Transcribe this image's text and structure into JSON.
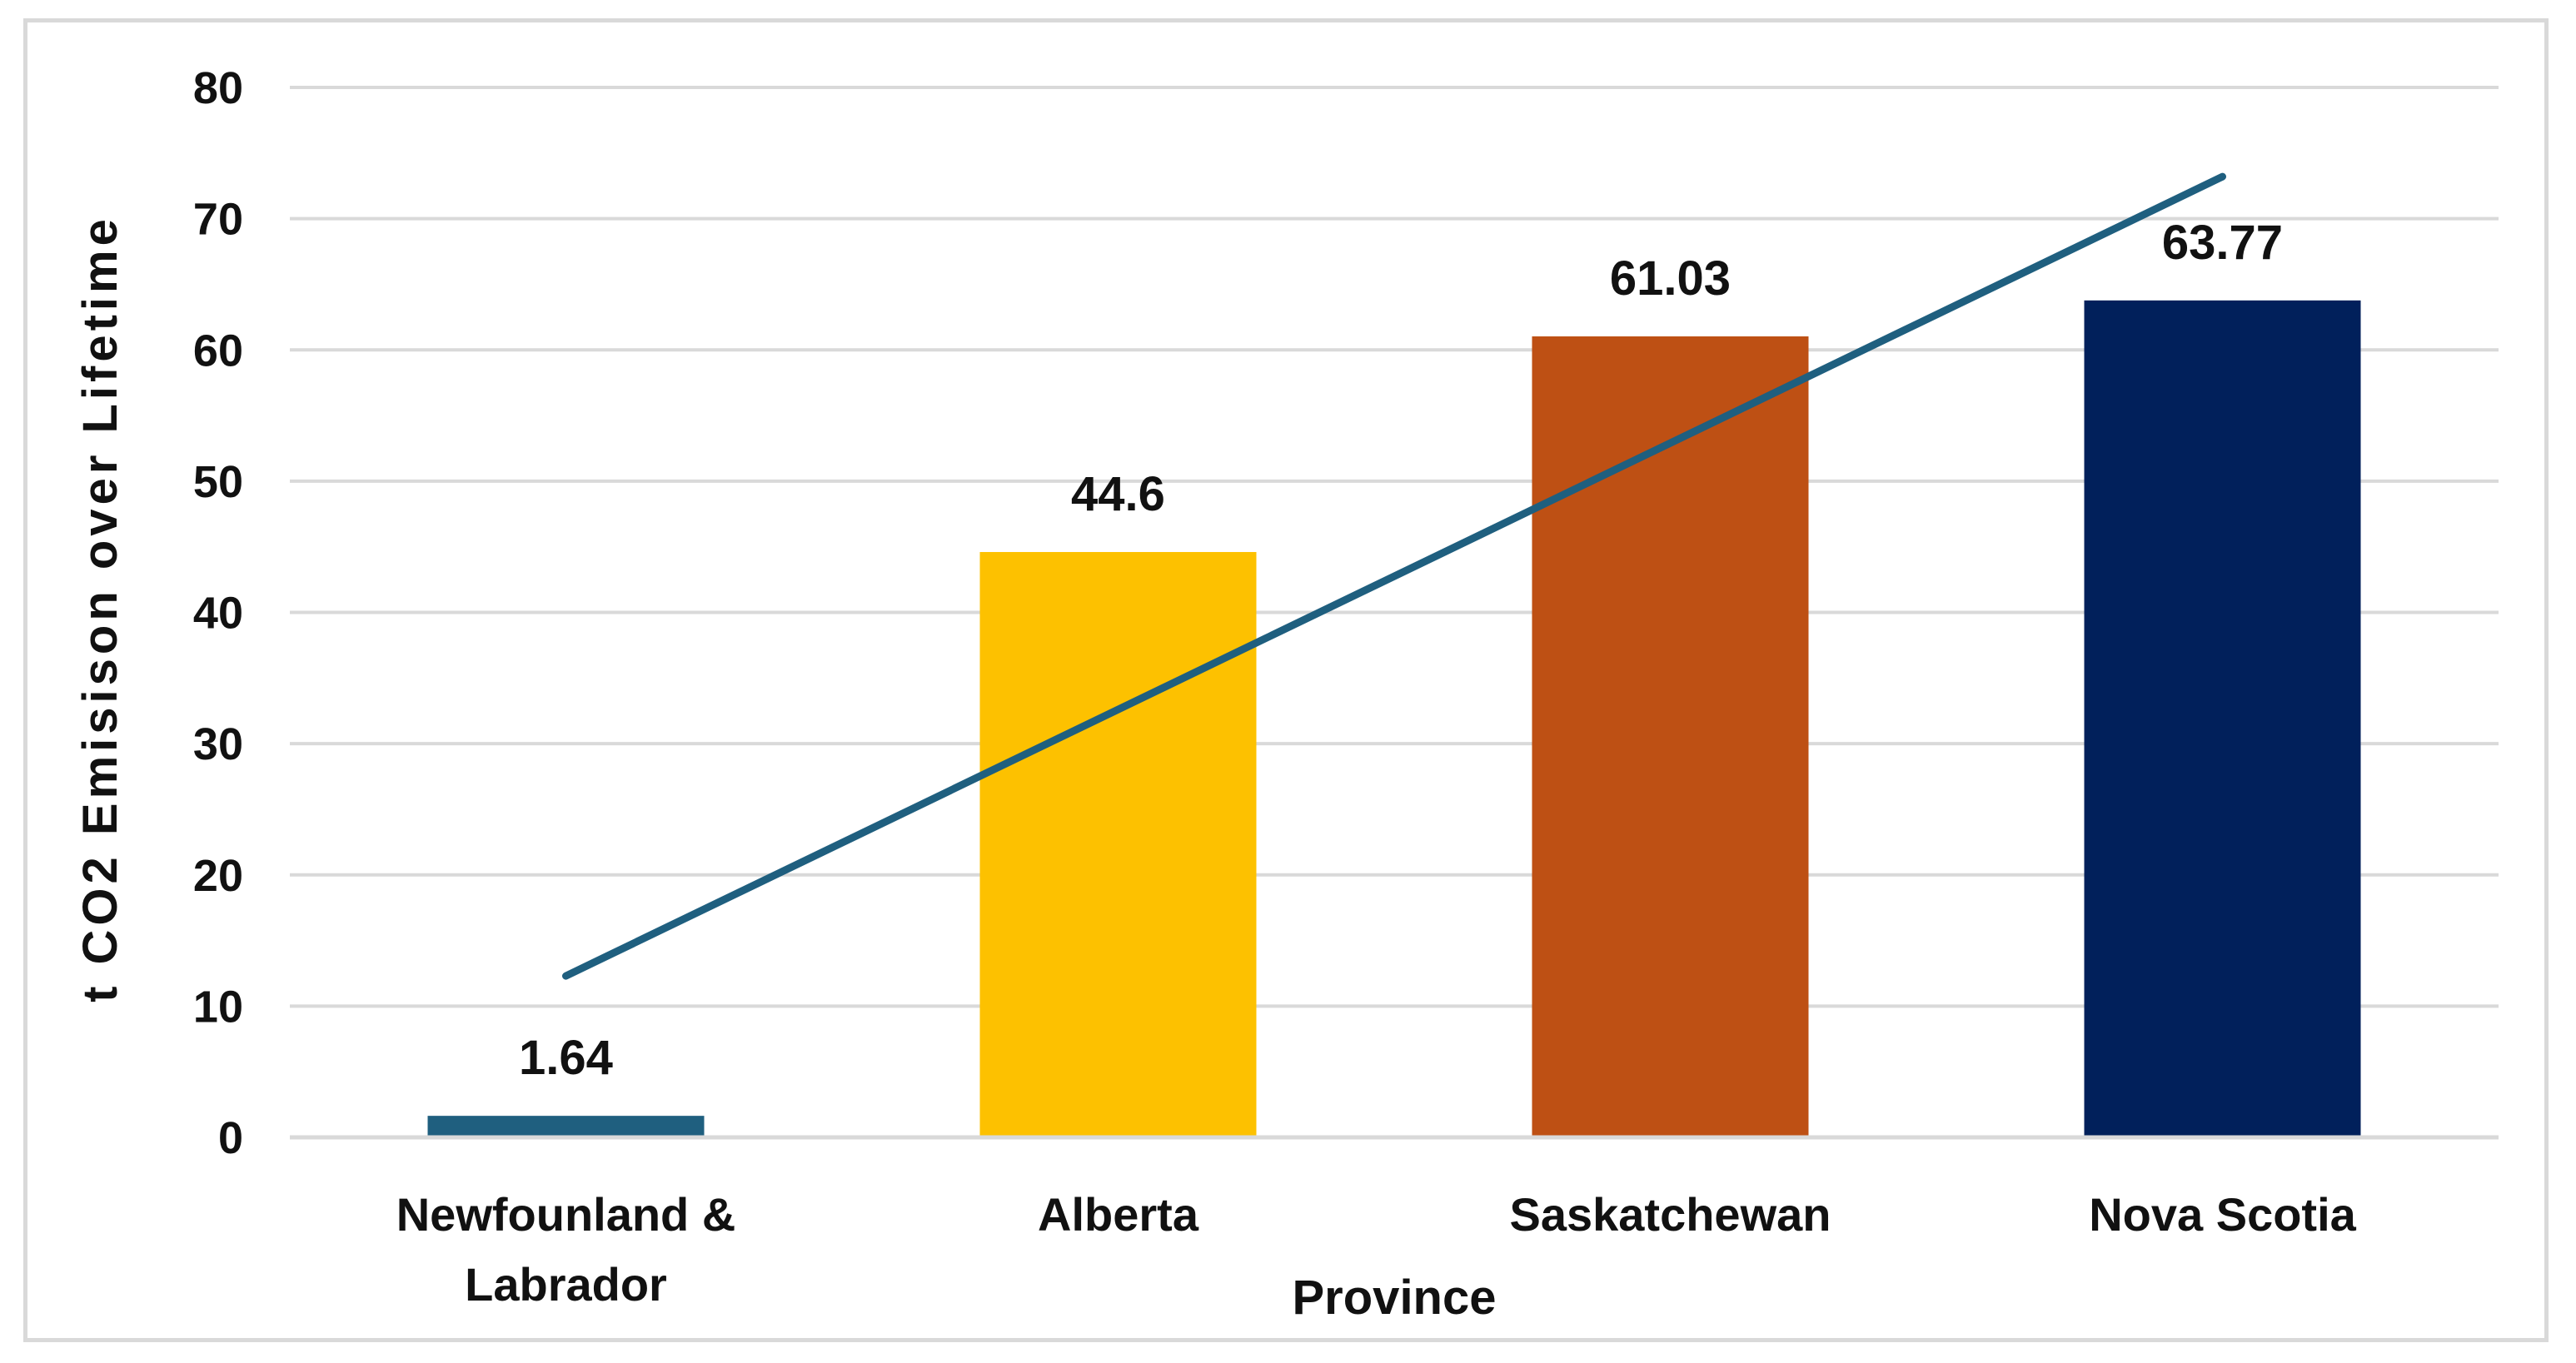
{
  "chart_data": {
    "type": "bar",
    "categories": [
      "Newfounland & Labrador",
      "Alberta",
      "Saskatchewan",
      "Nova Scotia"
    ],
    "category_lines": [
      [
        "Newfounland &",
        "Labrador"
      ],
      [
        "Alberta"
      ],
      [
        "Saskatchewan"
      ],
      [
        "Nova Scotia"
      ]
    ],
    "values": [
      1.64,
      44.6,
      61.03,
      63.77
    ],
    "data_labels": [
      "1.64",
      "44.6",
      "61.03",
      "63.77"
    ],
    "bar_colors": [
      "#1f5f7f",
      "#fdc100",
      "#be5014",
      "#01205b"
    ],
    "trendline": {
      "type": "linear",
      "color": "#1f5f7f",
      "y_start": 12.3,
      "y_end": 73.2
    },
    "xlabel": "Province",
    "ylabel": "t CO2 Emisison over Lifetime",
    "ylim": [
      0,
      80
    ],
    "yticks": [
      0,
      10,
      20,
      30,
      40,
      50,
      60,
      70,
      80
    ],
    "grid": true,
    "gridline_color": "#d9d9d9",
    "legend": "none"
  }
}
